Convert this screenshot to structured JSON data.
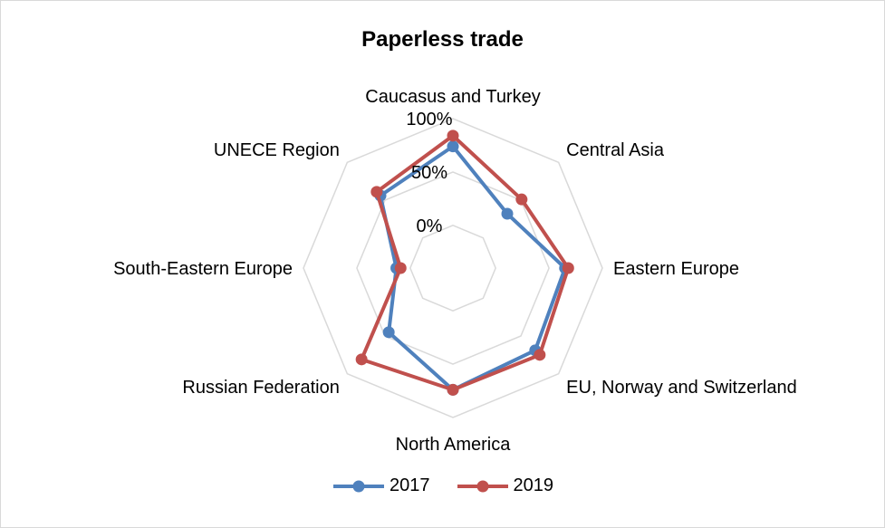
{
  "chart_data": {
    "type": "radar",
    "title": "Paperless trade",
    "categories": [
      "Caucasus and Turkey",
      "Central Asia",
      "Eastern Europe",
      "EU, Norway and Switzerland",
      "North America",
      "Russian Federation",
      "South-Eastern Europe",
      "UNECE Region"
    ],
    "series": [
      {
        "name": "2017",
        "color": "#4f81bd",
        "values": [
          74,
          32,
          65,
          69,
          74,
          45,
          13,
          56
        ]
      },
      {
        "name": "2019",
        "color": "#c0504d",
        "values": [
          84,
          51,
          68,
          75,
          74,
          81,
          9,
          61
        ]
      }
    ],
    "r_ticks": [
      "0%",
      "50%",
      "100%"
    ],
    "r_range": [
      -40,
      100
    ],
    "legend_position": "bottom",
    "grid": true
  }
}
